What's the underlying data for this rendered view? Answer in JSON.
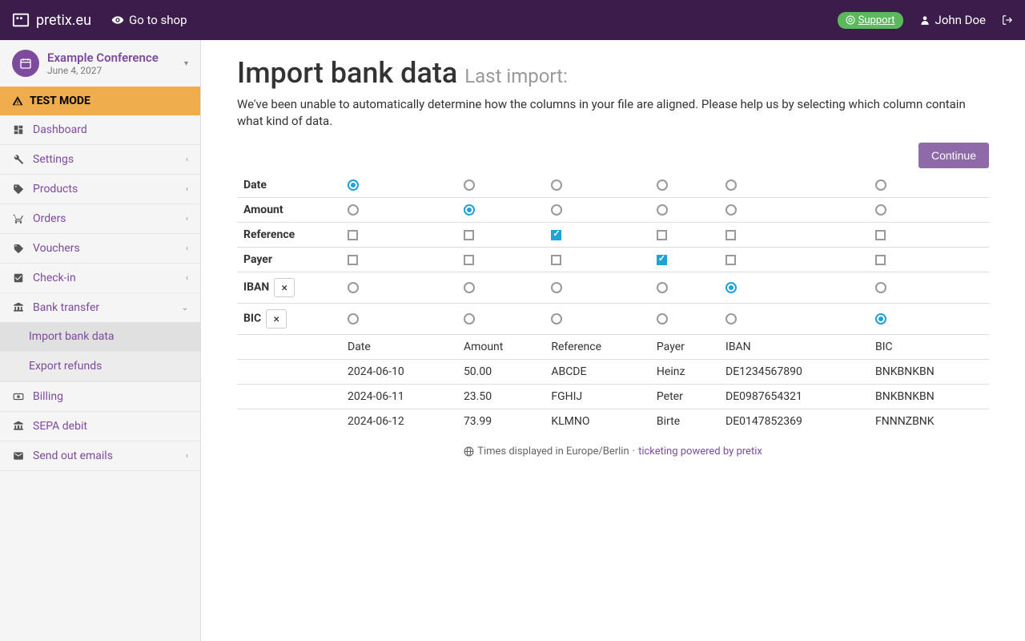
{
  "topnav": {
    "brand": "pretix.eu",
    "shop_link": "Go to shop",
    "support": "Support",
    "username": "John Doe"
  },
  "sidebar": {
    "event_name": "Example Conference",
    "event_date": "June 4, 2027",
    "testmode": "TEST MODE",
    "items": [
      {
        "label": "Dashboard",
        "icon": "dashboard",
        "expandable": false
      },
      {
        "label": "Settings",
        "icon": "wrench",
        "expandable": true
      },
      {
        "label": "Products",
        "icon": "tag",
        "expandable": true
      },
      {
        "label": "Orders",
        "icon": "cart",
        "expandable": true
      },
      {
        "label": "Vouchers",
        "icon": "tags",
        "expandable": true
      },
      {
        "label": "Check-in",
        "icon": "check-square",
        "expandable": true
      },
      {
        "label": "Bank transfer",
        "icon": "bank",
        "expandable": true,
        "expanded": true,
        "children": [
          {
            "label": "Import bank data",
            "active": true
          },
          {
            "label": "Export refunds",
            "active": false
          }
        ]
      },
      {
        "label": "Billing",
        "icon": "money",
        "expandable": false
      },
      {
        "label": "SEPA debit",
        "icon": "bank",
        "expandable": false
      },
      {
        "label": "Send out emails",
        "icon": "envelope",
        "expandable": true
      }
    ]
  },
  "page": {
    "title": "Import bank data",
    "subtitle": "Last import:",
    "description": "We've been unable to automatically determine how the columns in your file are aligned. Please help us by selecting which column contain what kind of data.",
    "continue_btn": "Continue"
  },
  "mapping": {
    "rows": [
      {
        "label": "Date",
        "type": "radio",
        "removable": false,
        "selected": 0
      },
      {
        "label": "Amount",
        "type": "radio",
        "removable": false,
        "selected": 1
      },
      {
        "label": "Reference",
        "type": "checkbox",
        "removable": false,
        "checked": [
          2
        ]
      },
      {
        "label": "Payer",
        "type": "checkbox",
        "removable": false,
        "checked": [
          3
        ]
      },
      {
        "label": "IBAN",
        "type": "radio",
        "removable": true,
        "selected": 4
      },
      {
        "label": "BIC",
        "type": "radio",
        "removable": true,
        "selected": 5
      }
    ],
    "columns": 6,
    "preview_headers": [
      "Date",
      "Amount",
      "Reference",
      "Payer",
      "IBAN",
      "BIC"
    ],
    "preview_rows": [
      [
        "2024-06-10",
        "50.00",
        "ABCDE",
        "Heinz",
        "DE1234567890",
        "BNKBNKBN"
      ],
      [
        "2024-06-11",
        "23.50",
        "FGHIJ",
        "Peter",
        "DE0987654321",
        "BNKBNKBN"
      ],
      [
        "2024-06-12",
        "73.99",
        "KLMNO",
        "Birte",
        "DE0147852369",
        "FNNNZBNK"
      ]
    ]
  },
  "footer": {
    "tz_text": "Times displayed in Europe/Berlin",
    "sep": " · ",
    "powered": "ticketing powered by pretix"
  },
  "colors": {
    "brand_purple": "#7e4a9e",
    "topnav_bg": "#3b1c4a",
    "accent_blue": "#1fa2d6",
    "warning": "#f0ad4e",
    "success": "#5cb85c"
  }
}
